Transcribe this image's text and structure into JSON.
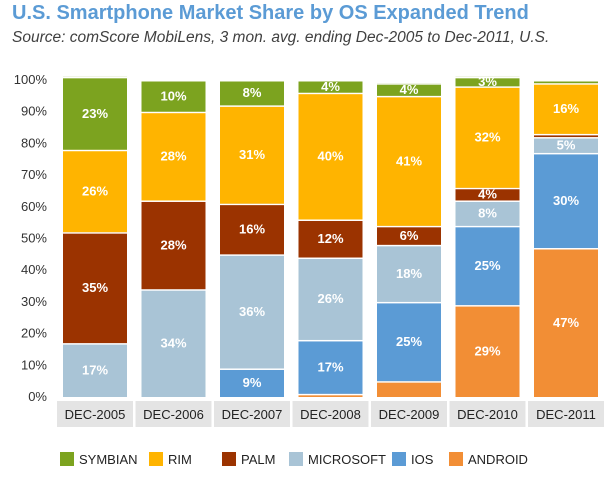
{
  "header": {
    "title": "U.S. Smartphone Market Share by OS Expanded Trend",
    "subtitle": "Source: comScore MobiLens, 3 mon. avg. ending Dec-2005 to Dec-2011, U.S."
  },
  "chart_data": {
    "type": "bar",
    "stacked": true,
    "title": "U.S. Smartphone Market Share by OS Expanded Trend",
    "subtitle": "Source: comScore MobiLens, 3 mon. avg. ending Dec-2005 to Dec-2011, U.S.",
    "categories": [
      "DEC-2005",
      "DEC-2006",
      "DEC-2007",
      "DEC-2008",
      "DEC-2009",
      "DEC-2010",
      "DEC-2011"
    ],
    "y_ticks": [
      "0%",
      "10%",
      "20%",
      "30%",
      "40%",
      "50%",
      "60%",
      "70%",
      "80%",
      "90%",
      "100%"
    ],
    "ylim": [
      0,
      100
    ],
    "grid": false,
    "legend_position": "bottom",
    "series": [
      {
        "name": "ANDROID",
        "color": "#f28e35",
        "values": [
          0,
          0,
          0,
          1,
          5,
          29,
          47
        ],
        "labels": [
          "",
          "",
          "",
          "",
          "",
          "29%",
          "47%"
        ]
      },
      {
        "name": "IOS",
        "color": "#5b9bd5",
        "values": [
          0,
          0,
          9,
          17,
          25,
          25,
          30
        ],
        "labels": [
          "",
          "",
          "9%",
          "17%",
          "25%",
          "25%",
          "30%"
        ]
      },
      {
        "name": "MICROSOFT",
        "color": "#a9c4d6",
        "values": [
          17,
          34,
          36,
          26,
          18,
          8,
          5
        ],
        "labels": [
          "17%",
          "34%",
          "36%",
          "26%",
          "18%",
          "8%",
          "5%"
        ]
      },
      {
        "name": "PALM",
        "color": "#9b3300",
        "values": [
          35,
          28,
          16,
          12,
          6,
          4,
          1
        ],
        "labels": [
          "35%",
          "28%",
          "16%",
          "12%",
          "6%",
          "4%",
          ""
        ]
      },
      {
        "name": "RIM",
        "color": "#ffb400",
        "values": [
          26,
          28,
          31,
          40,
          41,
          32,
          16
        ],
        "labels": [
          "26%",
          "28%",
          "31%",
          "40%",
          "41%",
          "32%",
          "16%"
        ]
      },
      {
        "name": "SYMBIAN",
        "color": "#7ca31f",
        "values": [
          23,
          10,
          8,
          4,
          4,
          3,
          1
        ],
        "labels": [
          "23%",
          "10%",
          "8%",
          "4%",
          "4%",
          "3%",
          ""
        ]
      }
    ],
    "legend_order": [
      "SYMBIAN",
      "RIM",
      "PALM",
      "MICROSOFT",
      "IOS",
      "ANDROID"
    ]
  }
}
